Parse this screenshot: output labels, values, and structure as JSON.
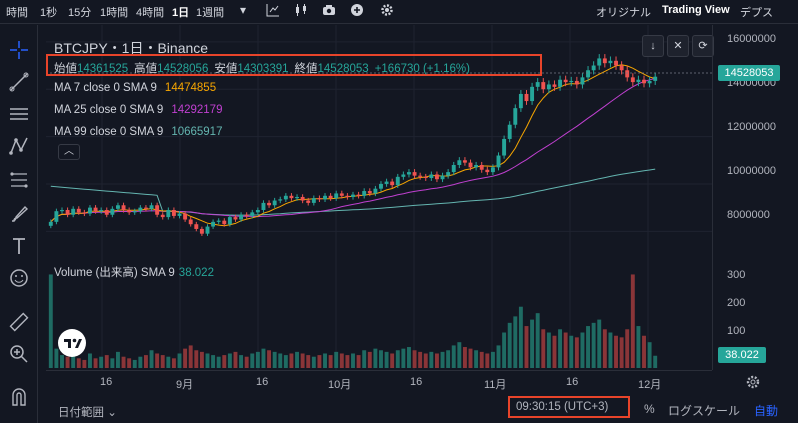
{
  "toolbar": {
    "intervals": [
      {
        "label": "時間",
        "x": 0
      },
      {
        "label": "1秒",
        "x": 0
      },
      {
        "label": "15分",
        "x": 0
      },
      {
        "label": "1時間",
        "x": 0
      },
      {
        "label": "4時間",
        "x": 0
      },
      {
        "label": "1日",
        "x": 0
      },
      {
        "label": "1週間",
        "x": 0
      }
    ],
    "active_interval": "1日",
    "views": [
      "オリジナル",
      "Trading View",
      "デプス"
    ],
    "active_view": "Trading View"
  },
  "legend": {
    "title": "BTCJPY・1日・Binance",
    "open_label": "始値",
    "open": "14361525",
    "high_label": "高値",
    "high": "14528056",
    "low_label": "安値",
    "low": "14303391",
    "close_label": "終値",
    "close": "14528053",
    "change": "+166730 (+1.16%)",
    "ma7_label": "MA 7 close 0 SMA 9",
    "ma7": "14474855",
    "ma25_label": "MA 25 close 0 SMA 9",
    "ma25": "14292179",
    "ma99_label": "MA 99 close 0 SMA 9",
    "ma99": "10665917",
    "volume_label": "Volume (出来高) SMA 9",
    "volume": "38.022"
  },
  "price_axis": {
    "ticks": [
      "16000000",
      "14000000",
      "12000000",
      "10000000",
      "8000000"
    ],
    "current_price": "14528053",
    "volume_ticks": [
      "300",
      "200",
      "100"
    ],
    "current_volume": "38.022"
  },
  "time_axis": {
    "ticks": [
      "16",
      "9月",
      "16",
      "10月",
      "16",
      "11月",
      "16",
      "12月"
    ]
  },
  "bottom": {
    "date_range": "日付範囲",
    "clock": "09:30:15 (UTC+3)",
    "percent": "%",
    "log_scale": "ログスケール",
    "auto": "自動"
  },
  "colors": {
    "up": "#26a69a",
    "down": "#ef5350",
    "ma7": "#f7a600",
    "ma25": "#c040d0",
    "ma99": "#64b5b0",
    "highlight": "#e8442a"
  },
  "chart_data": {
    "type": "candlestick",
    "price_range": [
      7000000,
      16500000
    ],
    "closes": [
      8400000,
      8850000,
      8900000,
      8700000,
      8950000,
      8800000,
      8750000,
      9000000,
      8850000,
      8900000,
      8700000,
      8950000,
      9100000,
      8900000,
      8800000,
      8850000,
      9000000,
      8950000,
      9100000,
      8700000,
      8600000,
      8900000,
      8650000,
      8750000,
      8500000,
      8300000,
      8100000,
      7900000,
      8200000,
      8400000,
      8450000,
      8300000,
      8600000,
      8500000,
      8700000,
      8650000,
      8800000,
      8900000,
      9200000,
      9100000,
      9300000,
      9350000,
      9500000,
      9400000,
      9450000,
      9300000,
      9200000,
      9400000,
      9350000,
      9500000,
      9400000,
      9600000,
      9500000,
      9450000,
      9550000,
      9500000,
      9700000,
      9600000,
      9800000,
      10000000,
      10100000,
      9950000,
      10300000,
      10400000,
      10500000,
      10350000,
      10300000,
      10250000,
      10400000,
      10200000,
      10350000,
      10500000,
      10800000,
      11000000,
      10900000,
      10700000,
      10800000,
      10600000,
      10500000,
      10700000,
      11200000,
      11900000,
      12500000,
      13200000,
      13800000,
      13500000,
      14100000,
      14300000,
      14000000,
      14200000,
      14100000,
      14400000,
      14300000,
      14350000,
      14200000,
      14500000,
      14800000,
      15000000,
      15300000,
      15100000,
      15200000,
      15000000,
      14800000,
      14500000,
      14300000,
      14400000,
      14250000,
      14350000,
      14528053
    ],
    "volumes": [
      290,
      60,
      40,
      35,
      50,
      30,
      25,
      45,
      30,
      35,
      40,
      30,
      50,
      35,
      30,
      25,
      35,
      40,
      55,
      45,
      40,
      35,
      30,
      45,
      60,
      70,
      55,
      50,
      45,
      40,
      35,
      40,
      45,
      50,
      40,
      35,
      45,
      50,
      60,
      55,
      50,
      45,
      40,
      45,
      50,
      45,
      40,
      35,
      40,
      45,
      40,
      50,
      45,
      40,
      45,
      40,
      55,
      50,
      60,
      55,
      50,
      45,
      55,
      60,
      65,
      55,
      50,
      45,
      50,
      45,
      50,
      55,
      70,
      80,
      65,
      60,
      55,
      50,
      45,
      50,
      70,
      110,
      140,
      160,
      190,
      130,
      150,
      170,
      120,
      110,
      100,
      120,
      110,
      100,
      95,
      110,
      130,
      140,
      150,
      120,
      110,
      100,
      95,
      120,
      290,
      130,
      100,
      80,
      38
    ],
    "ma99_end": "10665917"
  }
}
